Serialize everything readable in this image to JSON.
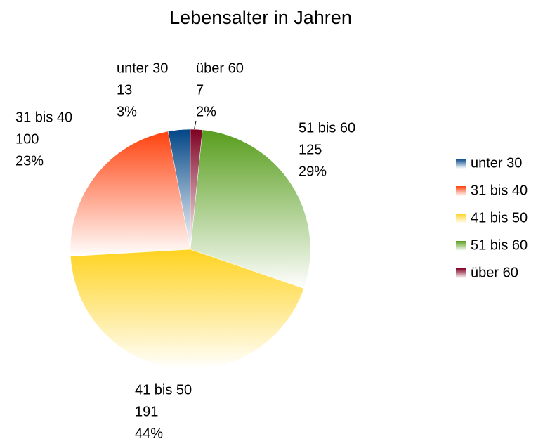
{
  "chart_data": {
    "type": "pie",
    "title": "Lebensalter in Jahren",
    "categories": [
      "unter 30",
      "31 bis 40",
      "41 bis 50",
      "51 bis 60",
      "über 60"
    ],
    "values": [
      13,
      100,
      191,
      125,
      7
    ],
    "percent_labels": [
      "3%",
      "23%",
      "44%",
      "29%",
      "2%"
    ],
    "colors": [
      "#004586",
      "#ff420e",
      "#ffd320",
      "#579d1c",
      "#7e0021"
    ],
    "legend": "right"
  }
}
